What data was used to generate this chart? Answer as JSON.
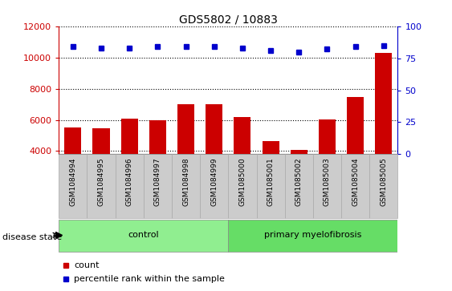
{
  "title": "GDS5802 / 10883",
  "samples": [
    "GSM1084994",
    "GSM1084995",
    "GSM1084996",
    "GSM1084997",
    "GSM1084998",
    "GSM1084999",
    "GSM1085000",
    "GSM1085001",
    "GSM1085002",
    "GSM1085003",
    "GSM1085004",
    "GSM1085005"
  ],
  "counts": [
    5500,
    5480,
    6100,
    5980,
    7000,
    7000,
    6200,
    4650,
    4100,
    6050,
    7450,
    10300
  ],
  "percentile_ranks": [
    84,
    83,
    83,
    84,
    84,
    84,
    83,
    81,
    80,
    82,
    84,
    85
  ],
  "bar_color": "#cc0000",
  "dot_color": "#0000cc",
  "ylim_left": [
    3800,
    12000
  ],
  "ylim_right": [
    0,
    100
  ],
  "yticks_left": [
    4000,
    6000,
    8000,
    10000,
    12000
  ],
  "yticks_right": [
    0,
    25,
    50,
    75,
    100
  ],
  "groups": [
    {
      "label": "control",
      "start": 0,
      "end": 5,
      "color": "#90ee90"
    },
    {
      "label": "primary myelofibrosis",
      "start": 6,
      "end": 11,
      "color": "#66dd66"
    }
  ],
  "disease_state_label": "disease state",
  "legend_items": [
    {
      "color": "#cc0000",
      "label": "count"
    },
    {
      "color": "#0000cc",
      "label": "percentile rank within the sample"
    }
  ],
  "tick_bg_color": "#cccccc",
  "spine_color": "#000000"
}
